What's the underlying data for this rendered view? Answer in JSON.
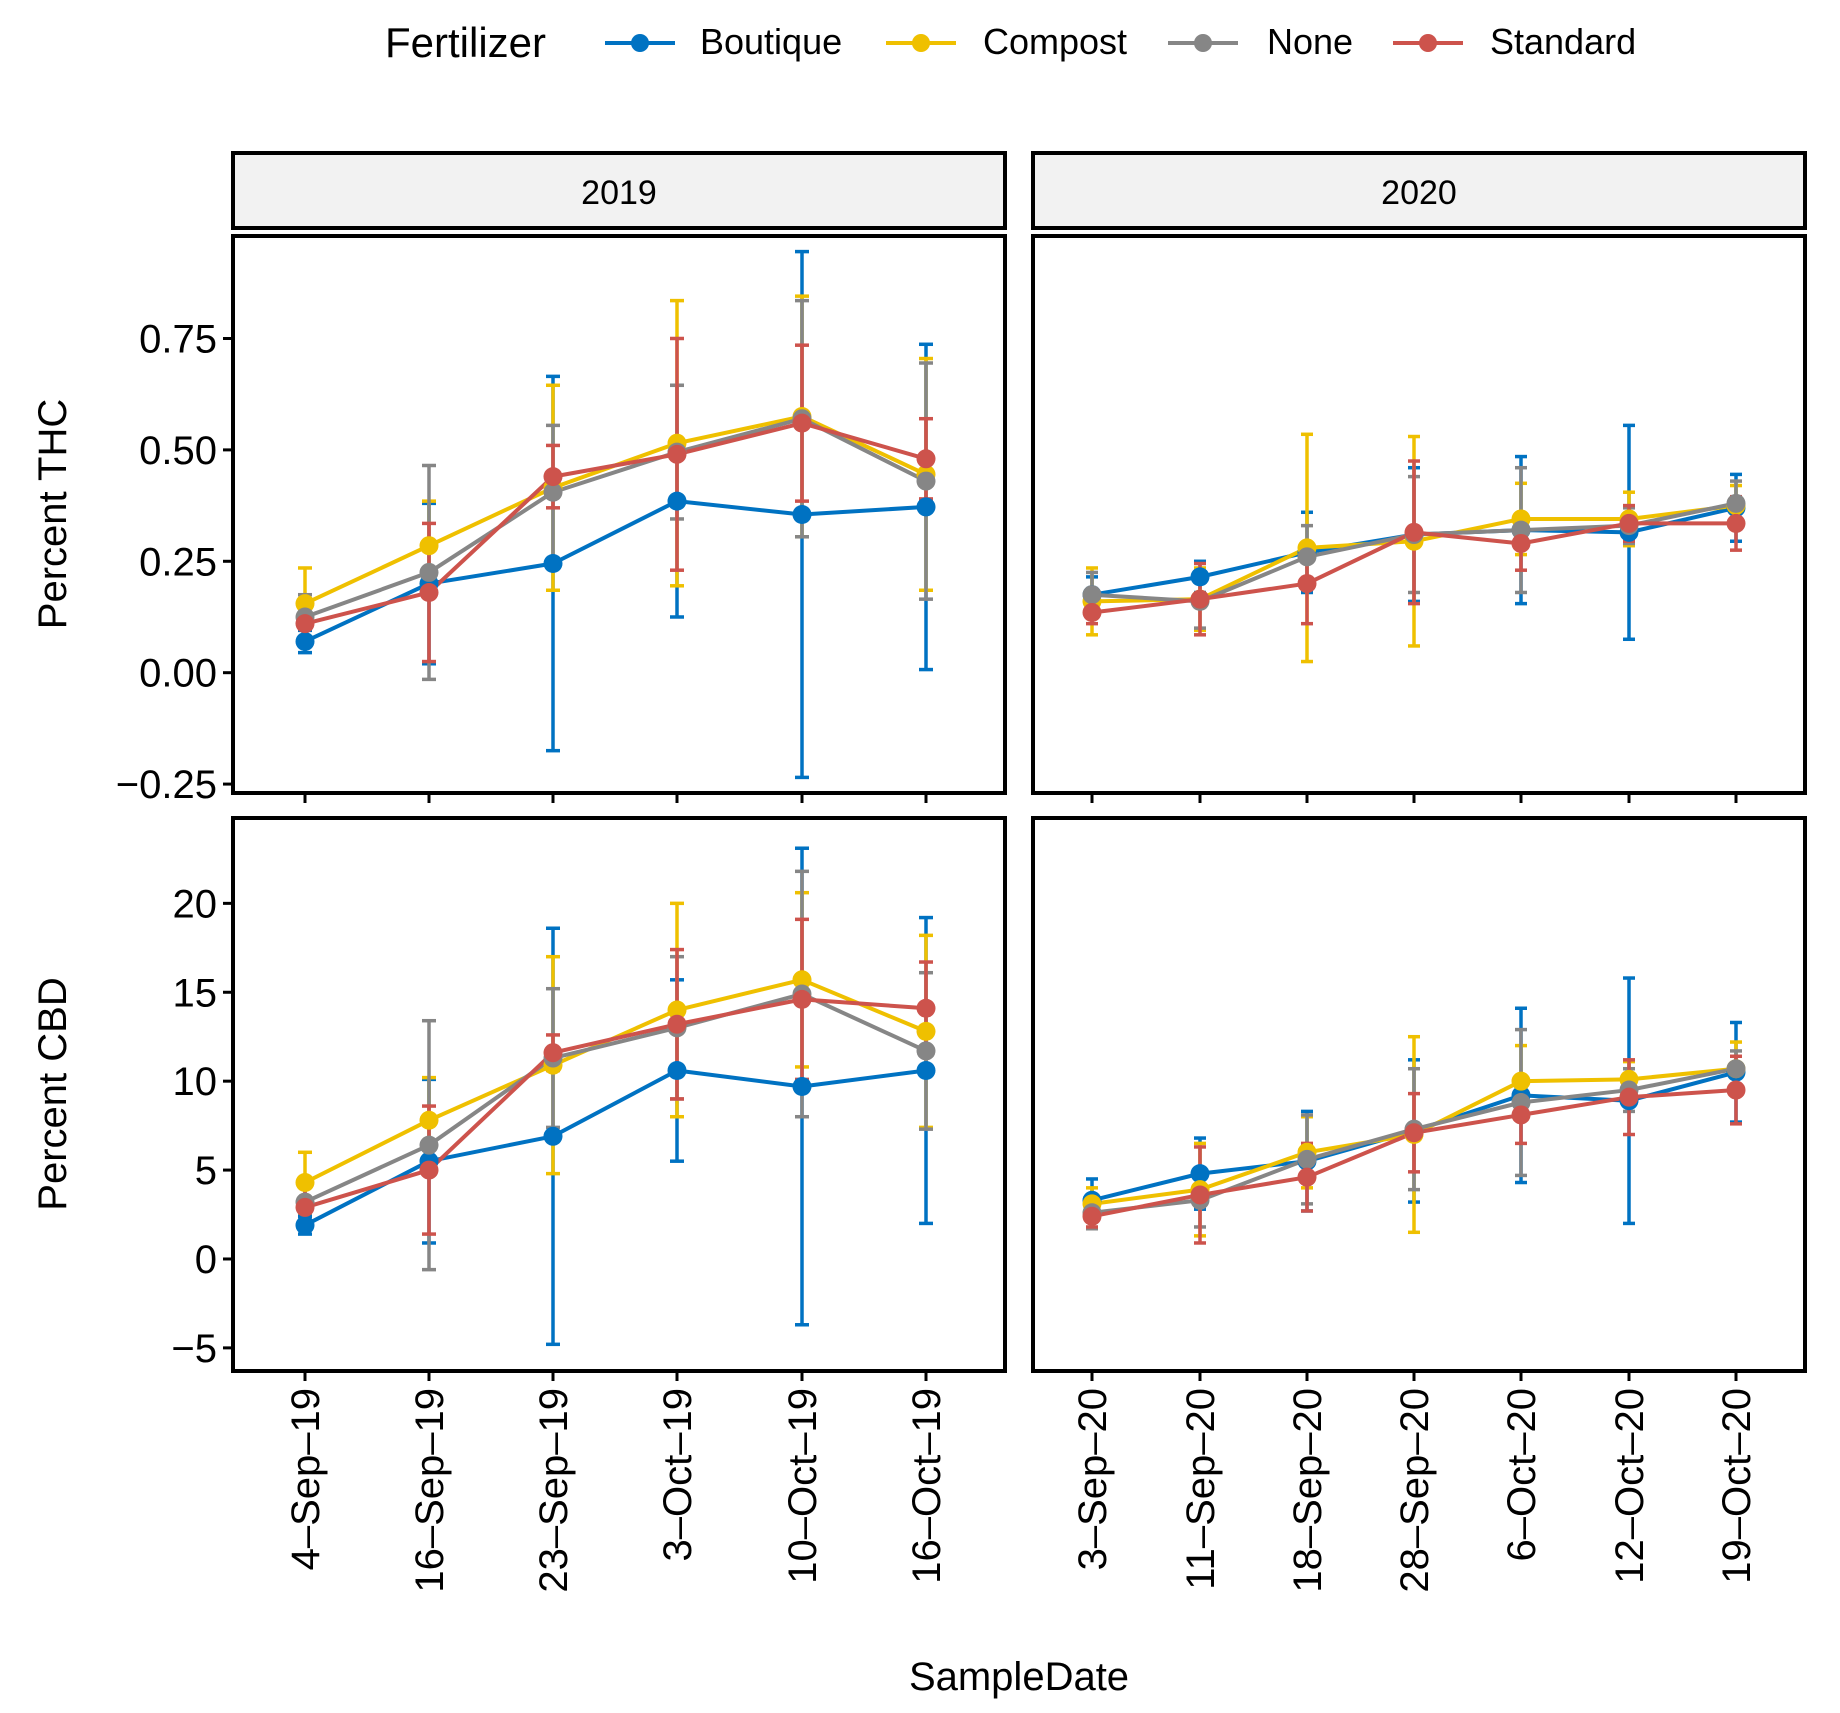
{
  "chart_data": {
    "type": "line",
    "legend": {
      "title": "Fertilizer",
      "position": "top",
      "entries": [
        {
          "name": "Boutique",
          "color": "#0072C2"
        },
        {
          "name": "Compost",
          "color": "#EFC000"
        },
        {
          "name": "None",
          "color": "#868686"
        },
        {
          "name": "Standard",
          "color": "#CD534C"
        }
      ]
    },
    "xlabel": "SampleDate",
    "facets": [
      "2019",
      "2020"
    ],
    "x_categories": {
      "2019": [
        "4-Sep-19",
        "16-Sep-19",
        "23-Sep-19",
        "3-Oct-19",
        "10-Oct-19",
        "16-Oct-19"
      ],
      "2020": [
        "3-Sep-20",
        "11-Sep-20",
        "18-Sep-20",
        "28-Sep-20",
        "6-Oct-20",
        "12-Oct-20",
        "19-Oct-20"
      ]
    },
    "rows": [
      {
        "ylabel": "Percent THC",
        "ylim": [
          -0.27,
          0.98
        ],
        "yticks": [
          -0.25,
          0,
          0.25,
          0.5,
          0.75
        ],
        "ytick_labels": [
          "−0.25",
          "0.00",
          "0.25",
          "0.50",
          "0.75"
        ],
        "panels": {
          "2019": [
            {
              "name": "Boutique",
              "values": [
                0.07,
                0.2,
                0.245,
                0.385,
                0.355,
                0.372
              ],
              "err": [
                0.025,
                0.18,
                0.42,
                0.26,
                0.59,
                0.365
              ]
            },
            {
              "name": "Compost",
              "values": [
                0.155,
                0.285,
                0.415,
                0.515,
                0.575,
                0.445
              ],
              "err": [
                0.08,
                0.1,
                0.23,
                0.32,
                0.27,
                0.26
              ]
            },
            {
              "name": "None",
              "values": [
                0.125,
                0.225,
                0.405,
                0.495,
                0.57,
                0.43
              ],
              "err": [
                0.05,
                0.24,
                0.15,
                0.15,
                0.265,
                0.265
              ]
            },
            {
              "name": "Standard",
              "values": [
                0.11,
                0.18,
                0.44,
                0.49,
                0.56,
                0.48
              ],
              "err": [
                0.04,
                0.155,
                0.07,
                0.26,
                0.175,
                0.09
              ]
            }
          ],
          "2020": [
            {
              "name": "Boutique",
              "values": [
                0.175,
                0.215,
                0.27,
                0.31,
                0.32,
                0.315,
                0.37
              ],
              "err": [
                0.04,
                0.035,
                0.09,
                0.15,
                0.165,
                0.24,
                0.075
              ]
            },
            {
              "name": "Compost",
              "values": [
                0.16,
                0.165,
                0.28,
                0.295,
                0.345,
                0.345,
                0.375
              ],
              "err": [
                0.075,
                0.07,
                0.255,
                0.235,
                0.08,
                0.06,
                0.045
              ]
            },
            {
              "name": "None",
              "values": [
                0.175,
                0.16,
                0.26,
                0.31,
                0.32,
                0.33,
                0.38
              ],
              "err": [
                0.05,
                0.06,
                0.07,
                0.13,
                0.14,
                0.04,
                0.05
              ]
            },
            {
              "name": "Standard",
              "values": [
                0.135,
                0.165,
                0.2,
                0.315,
                0.29,
                0.335,
                0.335
              ],
              "err": [
                0.025,
                0.08,
                0.09,
                0.16,
                0.06,
                0.04,
                0.06
              ]
            }
          ]
        }
      },
      {
        "ylabel": "Percent CBD",
        "ylim": [
          -6.3,
          24.8
        ],
        "yticks": [
          -5,
          0,
          5,
          10,
          15,
          20
        ],
        "ytick_labels": [
          "−5",
          "0",
          "5",
          "10",
          "15",
          "20"
        ],
        "panels": {
          "2019": [
            {
              "name": "Boutique",
              "values": [
                1.9,
                5.5,
                6.9,
                10.6,
                9.7,
                10.6
              ],
              "err": [
                0.5,
                4.6,
                11.7,
                5.1,
                13.4,
                8.6
              ]
            },
            {
              "name": "Compost",
              "values": [
                4.3,
                7.8,
                10.9,
                14.0,
                15.7,
                12.8
              ],
              "err": [
                1.7,
                2.4,
                6.1,
                6.0,
                4.9,
                5.4
              ]
            },
            {
              "name": "None",
              "values": [
                3.2,
                6.4,
                11.3,
                13.0,
                14.9,
                11.7
              ],
              "err": [
                1.0,
                7.0,
                3.9,
                4.0,
                6.9,
                4.4
              ]
            },
            {
              "name": "Standard",
              "values": [
                2.9,
                5.0,
                11.6,
                13.2,
                14.6,
                14.1
              ],
              "err": [
                1.2,
                3.6,
                1.0,
                4.2,
                4.5,
                2.6
              ]
            }
          ],
          "2020": [
            {
              "name": "Boutique",
              "values": [
                3.3,
                4.8,
                5.5,
                7.2,
                9.2,
                8.9,
                10.5
              ],
              "err": [
                1.2,
                2.0,
                2.8,
                4.0,
                4.9,
                6.9,
                2.8
              ]
            },
            {
              "name": "Compost",
              "values": [
                3.1,
                3.9,
                6.0,
                7.0,
                10.0,
                10.1,
                10.7
              ],
              "err": [
                0.9,
                2.6,
                2.0,
                5.5,
                2.0,
                1.0,
                1.5
              ]
            },
            {
              "name": "None",
              "values": [
                2.6,
                3.3,
                5.6,
                7.3,
                8.8,
                9.5,
                10.7
              ],
              "err": [
                0.9,
                1.5,
                2.5,
                3.4,
                4.1,
                1.2,
                1.0
              ]
            },
            {
              "name": "Standard",
              "values": [
                2.4,
                3.6,
                4.6,
                7.1,
                8.1,
                9.1,
                9.5
              ],
              "err": [
                0.6,
                2.7,
                1.9,
                2.2,
                1.6,
                2.1,
                1.9
              ]
            }
          ]
        }
      }
    ]
  }
}
